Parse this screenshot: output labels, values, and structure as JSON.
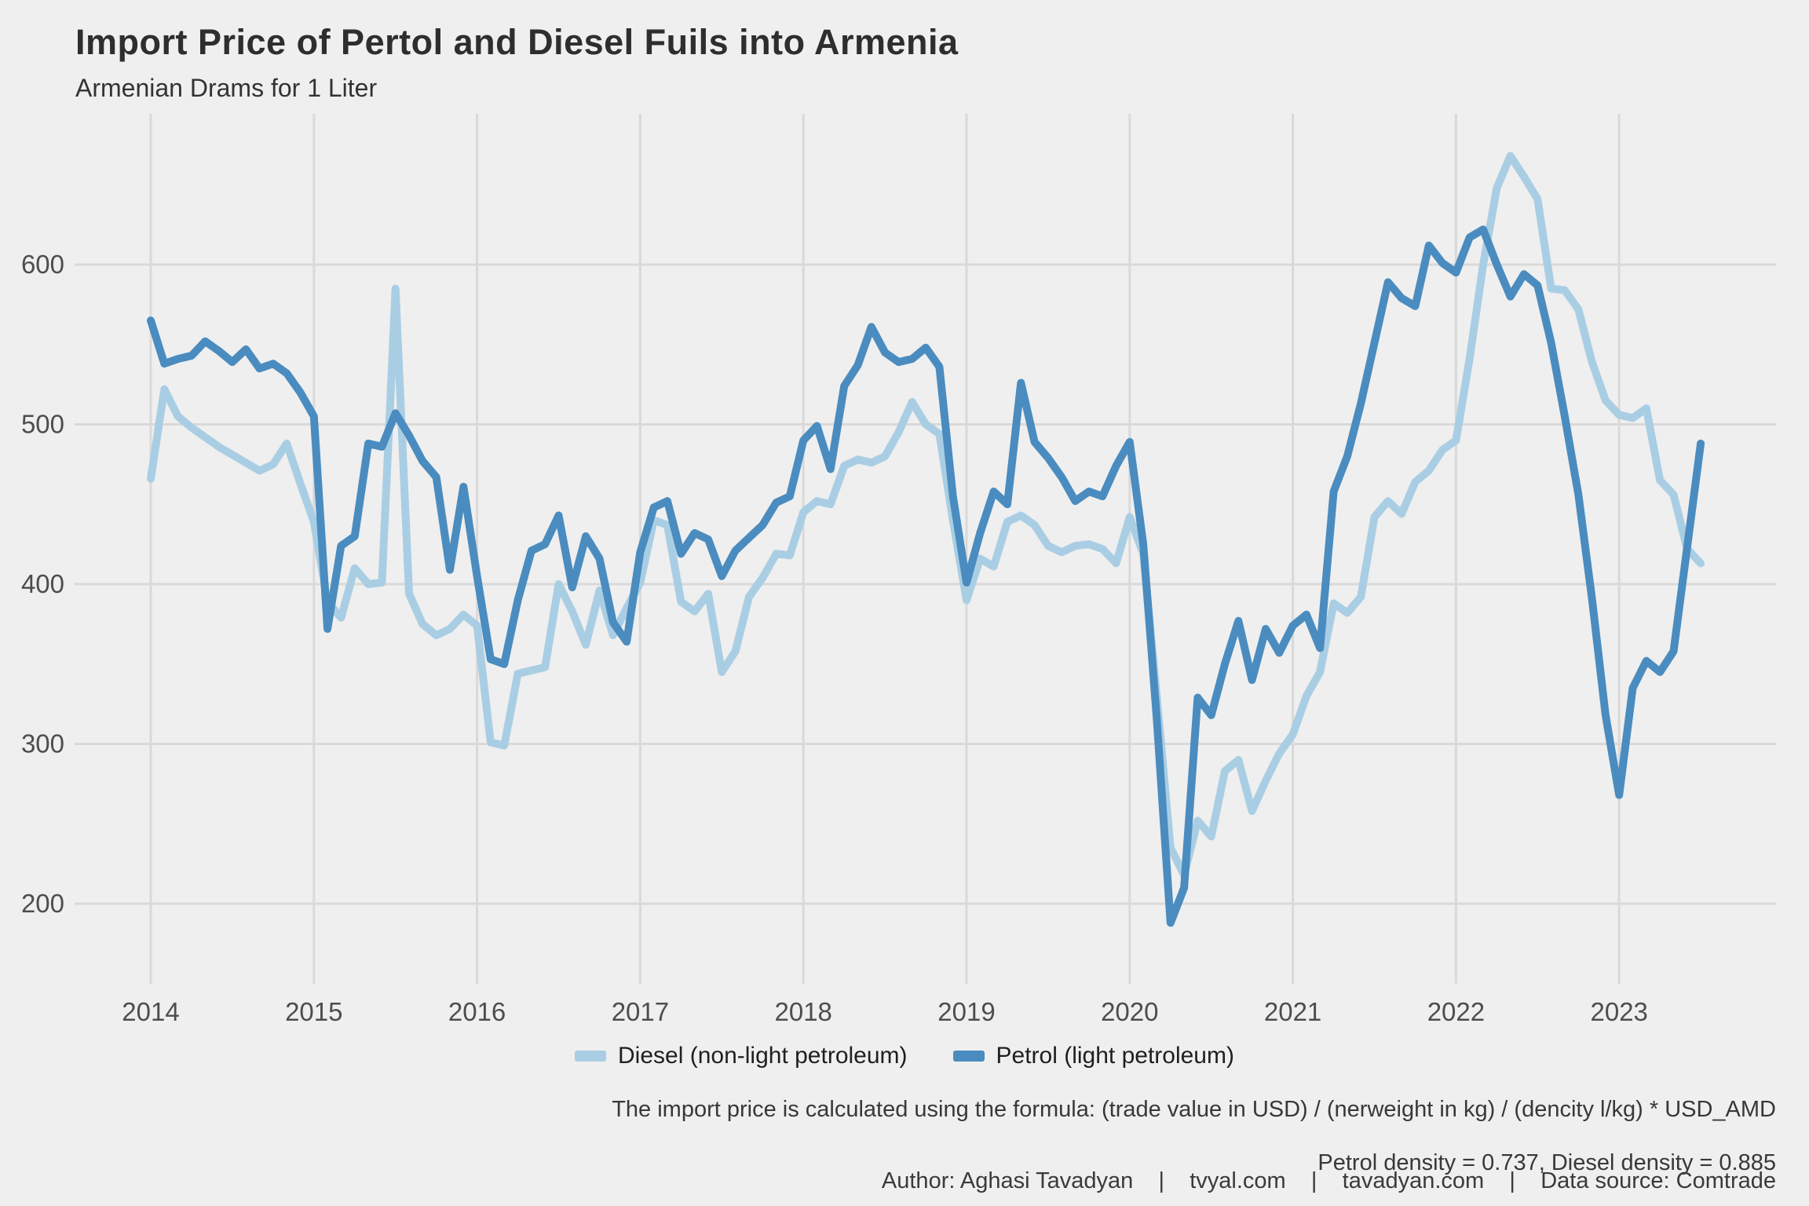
{
  "header": {
    "title": "Import Price of Pertol and Diesel Fuils into Armenia",
    "subtitle": "Armenian Drams for 1 Liter"
  },
  "chart_data": {
    "type": "line",
    "title": "Import Price of Pertol and Diesel Fuils into Armenia",
    "subtitle": "Armenian Drams for 1 Liter",
    "xlabel": "",
    "ylabel": "Armenian Drams for 1 Liter",
    "x_start": "2014-01",
    "x_end": "2023-07",
    "x_interval": "monthly",
    "x_ticks": [
      "2014",
      "2015",
      "2016",
      "2017",
      "2018",
      "2019",
      "2020",
      "2021",
      "2022",
      "2023"
    ],
    "y_ticks": [
      200,
      300,
      400,
      500,
      600
    ],
    "ylim": [
      155,
      695
    ],
    "grid": true,
    "legend_position": "bottom",
    "background_color": "#EFEFEF",
    "grid_color": "#D9D9D9",
    "axis_text_color": "#4D4D4D",
    "series": [
      {
        "name": "Diesel (non-light petroleum)",
        "color": "#A9CEE4",
        "values": [
          466,
          522,
          505,
          498,
          492,
          486,
          481,
          476,
          471,
          475,
          488,
          463,
          439,
          389,
          379,
          410,
          400,
          401,
          585,
          394,
          375,
          368,
          372,
          381,
          374,
          301,
          299,
          344,
          346,
          348,
          400,
          383,
          362,
          396,
          368,
          385,
          401,
          440,
          437,
          389,
          383,
          394,
          345,
          358,
          392,
          404,
          419,
          418,
          445,
          452,
          450,
          474,
          478,
          476,
          480,
          495,
          514,
          500,
          494,
          440,
          390,
          416,
          411,
          439,
          443,
          437,
          424,
          420,
          424,
          425,
          422,
          413,
          442,
          419,
          329,
          235,
          218,
          252,
          242,
          283,
          290,
          258,
          277,
          294,
          306,
          330,
          345,
          388,
          382,
          392,
          442,
          452,
          444,
          464,
          471,
          484,
          490,
          541,
          600,
          648,
          668,
          655,
          641,
          585,
          584,
          572,
          539,
          515,
          506,
          504,
          510,
          465,
          456,
          422,
          413
        ]
      },
      {
        "name": "Petrol (light petroleum)",
        "color": "#4A8CBF",
        "values": [
          565,
          538,
          541,
          543,
          552,
          546,
          539,
          547,
          535,
          538,
          532,
          520,
          505,
          372,
          424,
          430,
          488,
          486,
          507,
          493,
          477,
          467,
          409,
          461,
          405,
          353,
          350,
          390,
          421,
          425,
          443,
          398,
          430,
          416,
          376,
          364,
          420,
          448,
          452,
          419,
          432,
          428,
          405,
          421,
          429,
          437,
          451,
          455,
          490,
          499,
          472,
          524,
          537,
          561,
          545,
          539,
          541,
          548,
          536,
          455,
          401,
          432,
          458,
          450,
          526,
          489,
          479,
          467,
          452,
          458,
          455,
          474,
          489,
          425,
          315,
          188,
          210,
          329,
          318,
          350,
          377,
          340,
          372,
          357,
          374,
          381,
          360,
          458,
          480,
          513,
          551,
          589,
          579,
          574,
          612,
          601,
          595,
          617,
          622,
          600,
          580,
          594,
          587,
          551,
          505,
          456,
          391,
          318,
          268,
          335,
          352,
          345,
          358,
          423,
          488
        ]
      }
    ]
  },
  "captions": {
    "formula_line1": "The import price is calculated using the formula: (trade value in USD) / (nerweight in kg) / (dencity l/kg) * USD_AMD",
    "formula_line2": "Petrol density = 0.737, Diesel density = 0.885",
    "credits": "Author: Aghasi Tavadyan    |    tvyal.com    |    tavadyan.com    |    Data source: Comtrade"
  }
}
